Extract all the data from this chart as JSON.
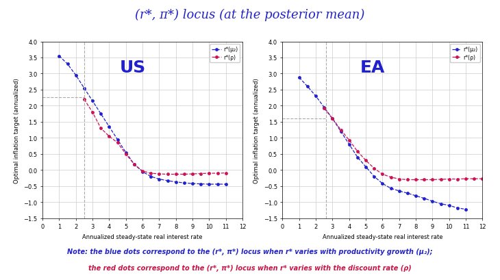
{
  "title": "(r*, π*) locus (at the posterior mean)",
  "title_color": "#2222cc",
  "title_fontsize": 13,
  "bg_color": "#ffffff",
  "us_label": "US",
  "ea_label": "EA",
  "xlabel": "Annualized steady-state real interest rate",
  "ylabel": "Optimal inflation target (annualized)",
  "xlim": [
    0,
    12
  ],
  "ylim": [
    -1.5,
    4
  ],
  "xticks": [
    0,
    1,
    2,
    3,
    4,
    5,
    6,
    7,
    8,
    9,
    10,
    11,
    12
  ],
  "yticks": [
    -1.5,
    -1,
    -0.5,
    0,
    0.5,
    1,
    1.5,
    2,
    2.5,
    3,
    3.5,
    4
  ],
  "us_blue_x": [
    1,
    1.5,
    2,
    2.5,
    3,
    3.5,
    4,
    4.5,
    5,
    5.5,
    6,
    6.5,
    7,
    7.5,
    8,
    8.5,
    9,
    9.5,
    10,
    10.5,
    11
  ],
  "us_blue_y": [
    3.55,
    3.3,
    2.95,
    2.55,
    2.15,
    1.75,
    1.35,
    0.95,
    0.55,
    0.18,
    -0.05,
    -0.2,
    -0.28,
    -0.33,
    -0.37,
    -0.4,
    -0.42,
    -0.43,
    -0.44,
    -0.44,
    -0.44
  ],
  "us_red_x": [
    2.5,
    3,
    3.5,
    4,
    4.5,
    5,
    5.5,
    6,
    6.5,
    7,
    7.5,
    8,
    8.5,
    9,
    9.5,
    10,
    10.5,
    11
  ],
  "us_red_y": [
    2.2,
    1.8,
    1.3,
    1.05,
    0.85,
    0.5,
    0.18,
    -0.03,
    -0.1,
    -0.12,
    -0.13,
    -0.13,
    -0.13,
    -0.12,
    -0.11,
    -0.1,
    -0.1,
    -0.09
  ],
  "us_vline_x": 2.5,
  "us_hline_y": 2.27,
  "ea_blue_x": [
    1,
    1.5,
    2,
    2.5,
    3,
    3.5,
    4,
    4.5,
    5,
    5.5,
    6,
    6.5,
    7,
    7.5,
    8,
    8.5,
    9,
    9.5,
    10,
    10.5,
    11
  ],
  "ea_blue_y": [
    2.88,
    2.6,
    2.3,
    1.95,
    1.6,
    1.2,
    0.8,
    0.4,
    0.1,
    -0.2,
    -0.42,
    -0.57,
    -0.65,
    -0.72,
    -0.8,
    -0.88,
    -0.97,
    -1.05,
    -1.1,
    -1.18,
    -1.22
  ],
  "ea_red_x": [
    2.5,
    3,
    3.5,
    4,
    4.5,
    5,
    5.5,
    6,
    6.5,
    7,
    7.5,
    8,
    8.5,
    9,
    9.5,
    10,
    10.5,
    11,
    11.5,
    12
  ],
  "ea_red_y": [
    1.92,
    1.6,
    1.25,
    0.93,
    0.58,
    0.3,
    0.05,
    -0.13,
    -0.22,
    -0.28,
    -0.3,
    -0.3,
    -0.3,
    -0.3,
    -0.29,
    -0.28,
    -0.28,
    -0.27,
    -0.27,
    -0.27
  ],
  "ea_vline_x": 2.6,
  "ea_hline_y": 1.6,
  "blue_color": "#2020cc",
  "red_color": "#cc1155",
  "legend_label_blue": "r*(μ₂)",
  "legend_label_red": "r*(ρ)",
  "note_line1": "Note: the blue dots correspond to the (r*, π*) locus when r* varies with productivity growth (μ₂);",
  "note_line2": "the red dots correspond to the (r*, π*) locus when r* varies with the discount rate (ρ)",
  "note_blue_color": "#2222cc",
  "note_red_color": "#cc1144"
}
